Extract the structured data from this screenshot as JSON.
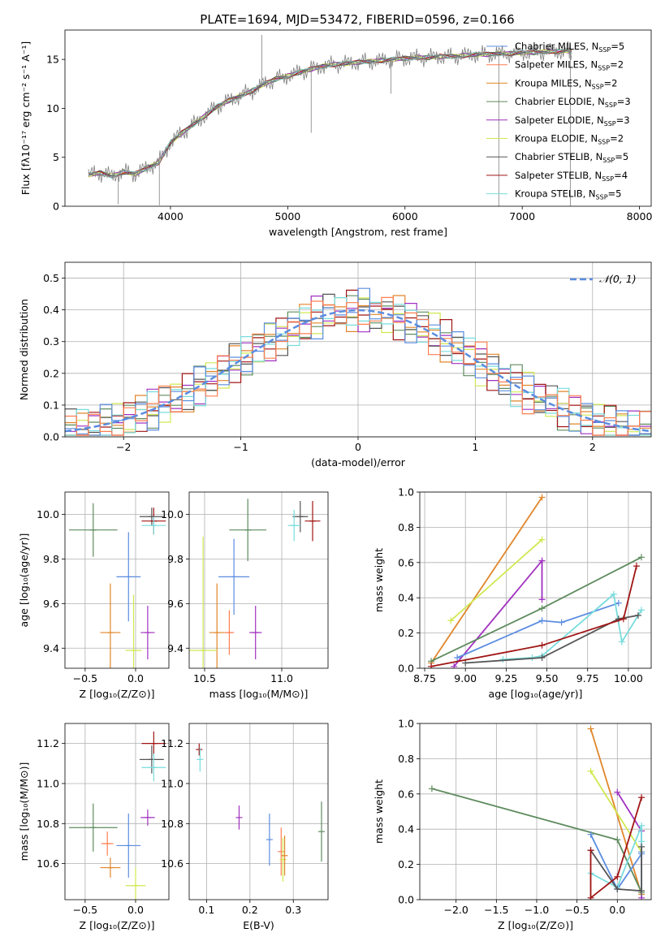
{
  "page": {
    "title": "PLATE=1694, MJD=53472, FIBERID=0596, z=0.166"
  },
  "chart_data": [
    {
      "id": "spectrum",
      "type": "line",
      "xlabel": "wavelength [Angstrom, rest frame]",
      "ylabel": "Flux [fλ10⁻¹⁷ erg cm⁻² s⁻¹ A⁻¹]",
      "xlim": [
        3100,
        8100
      ],
      "ylim": [
        0,
        18
      ],
      "xticks": [
        4000,
        5000,
        6000,
        7000,
        8000
      ],
      "yticks": [
        0,
        5,
        10,
        15
      ],
      "data_color": "#808080",
      "data_x": [
        3300,
        3400,
        3500,
        3600,
        3700,
        3800,
        3900,
        4000,
        4100,
        4200,
        4300,
        4400,
        4500,
        4600,
        4700,
        4800,
        4900,
        5000,
        5100,
        5200,
        5300,
        5400,
        5500,
        5600,
        5700,
        5800,
        5900,
        6000,
        6100,
        6200,
        6300,
        6400,
        6500,
        6600,
        6700,
        6800,
        6900,
        7000,
        7100,
        7200,
        7300,
        7400,
        7420
      ],
      "data_y": [
        3.2,
        3.4,
        3.1,
        3.5,
        3.3,
        3.9,
        4.5,
        6.5,
        7.5,
        8.4,
        9.3,
        10.2,
        10.8,
        11.3,
        11.8,
        12.5,
        13.0,
        13.3,
        13.7,
        14.0,
        14.3,
        14.5,
        14.6,
        14.7,
        14.8,
        14.9,
        15.0,
        15.1,
        15.2,
        15.2,
        15.3,
        15.3,
        15.4,
        15.5,
        15.5,
        15.6,
        15.6,
        15.7,
        15.7,
        15.8,
        15.8,
        15.9,
        15.8
      ],
      "spikes": [
        [
          3555,
          0.2
        ],
        [
          3905,
          0.1
        ],
        [
          4780,
          17.5
        ],
        [
          5200,
          7.5
        ],
        [
          5880,
          11.5
        ],
        [
          6800,
          0.0
        ],
        [
          7410,
          0.0
        ]
      ],
      "legend": [
        {
          "label": "Chabrier MILES, N",
          "sub": "SSP",
          "suffix": "=5",
          "color": "#5b8de0"
        },
        {
          "label": "Salpeter MILES, N",
          "sub": "SSP",
          "suffix": "=2",
          "color": "#ff7f50"
        },
        {
          "label": "Kroupa MILES, N",
          "sub": "SSP",
          "suffix": "=2",
          "color": "#e0862a"
        },
        {
          "label": "Chabrier ELODIE, N",
          "sub": "SSP",
          "suffix": "=3",
          "color": "#5e8b5e"
        },
        {
          "label": "Salpeter ELODIE, N",
          "sub": "SSP",
          "suffix": "=3",
          "color": "#a030c0"
        },
        {
          "label": "Kroupa ELODIE, N",
          "sub": "SSP",
          "suffix": "=2",
          "color": "#d0e850"
        },
        {
          "label": "Chabrier STELIB, N",
          "sub": "SSP",
          "suffix": "=5",
          "color": "#555555"
        },
        {
          "label": "Salpeter STELIB, N",
          "sub": "SSP",
          "suffix": "=4",
          "color": "#a01414"
        },
        {
          "label": "Kroupa STELIB, N",
          "sub": "SSP",
          "suffix": "=5",
          "color": "#78dcdc"
        }
      ]
    },
    {
      "id": "residuals",
      "type": "bar",
      "xlabel": "(data-model)/error",
      "ylabel": "Normed distribution",
      "xlim": [
        -2.5,
        2.5
      ],
      "ylim": [
        0,
        0.55
      ],
      "xticks": [
        -2,
        -1,
        0,
        1,
        2
      ],
      "xtick_labels": [
        "−2",
        "−1",
        "0",
        "1",
        "2"
      ],
      "yticks": [
        0.0,
        0.1,
        0.2,
        0.3,
        0.4,
        0.5
      ],
      "grid": true,
      "bin_edges_start": -2.5,
      "bin_width": 0.1,
      "gauss_label": "𝒩(0, 1)",
      "gauss_color": "#5b8de0",
      "hist_colors": [
        "#e0862a",
        "#5e8b5e",
        "#a030c0",
        "#d0e850",
        "#555555",
        "#a01414",
        "#78dcdc",
        "#5b8de0",
        "#ff7f50"
      ]
    },
    {
      "id": "age-vs-Z",
      "type": "scatter",
      "xlabel": "Z [log₁₀(Z/Z⊙)]",
      "ylabel": "age  [log₁₀(age/yr)]",
      "xlim": [
        -0.7,
        0.33
      ],
      "ylim": [
        9.31,
        10.1
      ],
      "xticks": [
        -0.5,
        0.0
      ],
      "xtick_labels": [
        "−0.5",
        "0.0"
      ],
      "yticks": [
        9.4,
        9.6,
        9.8,
        10.0
      ],
      "grid": true,
      "points": [
        {
          "x": -0.42,
          "y": 9.93,
          "xe": 0.24,
          "ye": 0.12,
          "color": "#5e8b5e"
        },
        {
          "x": -0.25,
          "y": 9.47,
          "xe": 0.1,
          "ye": 0.22,
          "color": "#e0862a"
        },
        {
          "x": -0.07,
          "y": 9.72,
          "xe": 0.12,
          "ye": 0.2,
          "color": "#5b8de0"
        },
        {
          "x": -0.02,
          "y": 9.39,
          "xe": 0.08,
          "ye": 0.25,
          "color": "#d0e850"
        },
        {
          "x": 0.12,
          "y": 9.47,
          "xe": 0.07,
          "ye": 0.12,
          "color": "#a030c0"
        },
        {
          "x": 0.16,
          "y": 9.99,
          "xe": 0.12,
          "ye": 0.04,
          "color": "#555555"
        },
        {
          "x": 0.18,
          "y": 9.97,
          "xe": 0.12,
          "ye": 0.06,
          "color": "#a01414"
        },
        {
          "x": 0.18,
          "y": 9.95,
          "xe": 0.12,
          "ye": 0.04,
          "color": "#78dcdc"
        }
      ]
    },
    {
      "id": "age-vs-mass",
      "type": "scatter",
      "xlabel": "mass [log₁₀(M/M⊙)]",
      "ylabel": "",
      "xlim": [
        10.4,
        11.3
      ],
      "ylim": [
        9.31,
        10.1
      ],
      "xticks": [
        10.5,
        11.0
      ],
      "xtick_labels": [
        "10.5",
        "11.0"
      ],
      "yticks": [
        9.4,
        9.6,
        9.8,
        10.0
      ],
      "grid": true,
      "points": [
        {
          "x": 10.78,
          "y": 9.93,
          "xe": 0.12,
          "ye": 0.14,
          "color": "#5e8b5e"
        },
        {
          "x": 10.58,
          "y": 9.47,
          "xe": 0.05,
          "ye": 0.22,
          "color": "#e0862a"
        },
        {
          "x": 10.69,
          "y": 9.72,
          "xe": 0.1,
          "ye": 0.17,
          "color": "#5b8de0"
        },
        {
          "x": 10.49,
          "y": 9.39,
          "xe": 0.09,
          "ye": 0.51,
          "color": "#d0e850"
        },
        {
          "x": 10.83,
          "y": 9.47,
          "xe": 0.04,
          "ye": 0.12,
          "color": "#a030c0"
        },
        {
          "x": 10.66,
          "y": 9.47,
          "xe": 0.03,
          "ye": 0.1,
          "color": "#ff7f50"
        },
        {
          "x": 11.12,
          "y": 9.99,
          "xe": 0.05,
          "ye": 0.07,
          "color": "#555555"
        },
        {
          "x": 11.2,
          "y": 9.97,
          "xe": 0.05,
          "ye": 0.09,
          "color": "#a01414"
        },
        {
          "x": 11.08,
          "y": 9.95,
          "xe": 0.04,
          "ye": 0.07,
          "color": "#78dcdc"
        }
      ]
    },
    {
      "id": "massweight-vs-age",
      "type": "line",
      "xlabel": "age  [log₁₀(age/yr)]",
      "ylabel": "mass weight",
      "xlim": [
        8.72,
        10.14
      ],
      "ylim": [
        0,
        1.0
      ],
      "xticks": [
        8.75,
        9.0,
        9.25,
        9.5,
        9.75,
        10.0
      ],
      "xtick_labels": [
        "8.75",
        "9.00",
        "9.25",
        "9.50",
        "9.75",
        "10.00"
      ],
      "yticks": [
        0.0,
        0.2,
        0.4,
        0.6,
        0.8,
        1.0
      ],
      "grid": true,
      "series": [
        {
          "color": "#e0862a",
          "x": [
            8.79,
            9.47
          ],
          "y": [
            0.03,
            0.97
          ]
        },
        {
          "color": "#d0e850",
          "x": [
            8.91,
            9.47
          ],
          "y": [
            0.27,
            0.73
          ]
        },
        {
          "color": "#a030c0",
          "x": [
            8.93,
            9.47,
            9.47
          ],
          "y": [
            0.01,
            0.61,
            0.39
          ]
        },
        {
          "color": "#5e8b5e",
          "x": [
            8.79,
            9.47,
            10.08
          ],
          "y": [
            0.04,
            0.34,
            0.63
          ]
        },
        {
          "color": "#5b8de0",
          "x": [
            8.95,
            9.47,
            9.59,
            9.94
          ],
          "y": [
            0.06,
            0.27,
            0.26,
            0.37
          ]
        },
        {
          "color": "#78dcdc",
          "x": [
            9.23,
            9.41,
            9.47,
            9.91,
            9.96,
            10.08
          ],
          "y": [
            0.05,
            0.06,
            0.07,
            0.42,
            0.15,
            0.33
          ]
        },
        {
          "color": "#555555",
          "x": [
            9.0,
            9.47,
            9.94,
            10.06
          ],
          "y": [
            0.03,
            0.06,
            0.28,
            0.3
          ]
        },
        {
          "color": "#a01414",
          "x": [
            8.79,
            9.47,
            9.97,
            10.05
          ],
          "y": [
            0.01,
            0.13,
            0.28,
            0.58
          ]
        }
      ]
    },
    {
      "id": "mass-vs-Z",
      "type": "scatter",
      "xlabel": "Z [log₁₀(Z/Z⊙)]",
      "ylabel": "mass [log₁₀(M/M⊙)]",
      "xlim": [
        -0.7,
        0.33
      ],
      "ylim": [
        10.42,
        11.3
      ],
      "xticks": [
        -0.5,
        0.0
      ],
      "xtick_labels": [
        "−0.5",
        "0.0"
      ],
      "yticks": [
        10.6,
        10.8,
        11.0,
        11.2
      ],
      "grid": true,
      "points": [
        {
          "x": -0.42,
          "y": 10.78,
          "xe": 0.24,
          "ye": 0.12,
          "color": "#5e8b5e"
        },
        {
          "x": -0.25,
          "y": 10.58,
          "xe": 0.1,
          "ye": 0.05,
          "color": "#e0862a"
        },
        {
          "x": -0.28,
          "y": 10.7,
          "xe": 0.06,
          "ye": 0.06,
          "color": "#ff7f50"
        },
        {
          "x": -0.07,
          "y": 10.69,
          "xe": 0.12,
          "ye": 0.16,
          "color": "#5b8de0"
        },
        {
          "x": 0.0,
          "y": 10.49,
          "xe": 0.1,
          "ye": 0.09,
          "color": "#d0e850"
        },
        {
          "x": 0.12,
          "y": 10.83,
          "xe": 0.07,
          "ye": 0.04,
          "color": "#a030c0"
        },
        {
          "x": 0.16,
          "y": 11.12,
          "xe": 0.12,
          "ye": 0.07,
          "color": "#555555"
        },
        {
          "x": 0.18,
          "y": 11.2,
          "xe": 0.12,
          "ye": 0.06,
          "color": "#a01414"
        },
        {
          "x": 0.18,
          "y": 11.08,
          "xe": 0.12,
          "ye": 0.07,
          "color": "#78dcdc"
        }
      ]
    },
    {
      "id": "mass-vs-EBV",
      "type": "scatter",
      "xlabel": "E(B-V)",
      "ylabel": "",
      "xlim": [
        0.06,
        0.38
      ],
      "ylim": [
        10.42,
        11.3
      ],
      "xticks": [
        0.1,
        0.2,
        0.3
      ],
      "xtick_labels": [
        "0.1",
        "0.2",
        "0.3"
      ],
      "yticks": [
        10.6,
        10.8,
        11.0,
        11.2
      ],
      "grid": true,
      "points": [
        {
          "x": 0.083,
          "y": 11.17,
          "xe": 0,
          "ye": 0.03,
          "color": "#a01414"
        },
        {
          "x": 0.085,
          "y": 11.12,
          "xe": 0,
          "ye": 0.06,
          "color": "#78dcdc"
        },
        {
          "x": 0.175,
          "y": 10.83,
          "xe": 0,
          "ye": 0.06,
          "color": "#a030c0"
        },
        {
          "x": 0.245,
          "y": 10.72,
          "xe": 0,
          "ye": 0.13,
          "color": "#5b8de0"
        },
        {
          "x": 0.272,
          "y": 10.66,
          "xe": 0,
          "ye": 0.12,
          "color": "#ff7f50"
        },
        {
          "x": 0.276,
          "y": 10.62,
          "xe": 0,
          "ye": 0.11,
          "color": "#d0e850"
        },
        {
          "x": 0.28,
          "y": 10.64,
          "xe": 0,
          "ye": 0.1,
          "color": "#e0862a"
        },
        {
          "x": 0.365,
          "y": 10.76,
          "xe": 0,
          "ye": 0.15,
          "color": "#5e8b5e"
        }
      ]
    },
    {
      "id": "massweight-vs-Z",
      "type": "line",
      "xlabel": "Z [log₁₀(Z/Z⊙)]",
      "ylabel": "mass weight",
      "xlim": [
        -2.45,
        0.42
      ],
      "ylim": [
        0,
        1.0
      ],
      "xticks": [
        -2.0,
        -1.5,
        -1.0,
        -0.5,
        0.0
      ],
      "xtick_labels": [
        "−2.0",
        "−1.5",
        "−1.0",
        "−0.5",
        "0.0"
      ],
      "yticks": [
        0.0,
        0.2,
        0.4,
        0.6,
        0.8,
        1.0
      ],
      "grid": true,
      "series": [
        {
          "color": "#e0862a",
          "x": [
            -0.33,
            0.3
          ],
          "y": [
            0.97,
            0.03
          ]
        },
        {
          "color": "#d0e850",
          "x": [
            -0.33,
            0.3
          ],
          "y": [
            0.73,
            0.27
          ]
        },
        {
          "color": "#a030c0",
          "x": [
            0.0,
            0.3,
            0.3
          ],
          "y": [
            0.61,
            0.39,
            0.01
          ]
        },
        {
          "color": "#5e8b5e",
          "x": [
            -2.3,
            0.0,
            0.3
          ],
          "y": [
            0.63,
            0.34,
            0.04
          ]
        },
        {
          "color": "#5b8de0",
          "x": [
            -0.33,
            0.0,
            0.3,
            0.3
          ],
          "y": [
            0.37,
            0.06,
            0.26,
            0.27
          ]
        },
        {
          "color": "#78dcdc",
          "x": [
            -0.33,
            0.0,
            0.3,
            0.3,
            0.3
          ],
          "y": [
            0.15,
            0.07,
            0.42,
            0.33,
            0.05
          ]
        },
        {
          "color": "#555555",
          "x": [
            -0.33,
            0.0,
            0.3,
            0.3
          ],
          "y": [
            0.28,
            0.06,
            0.05,
            0.3
          ]
        },
        {
          "color": "#a01414",
          "x": [
            -0.33,
            -0.33,
            0.0,
            0.3
          ],
          "y": [
            0.28,
            0.01,
            0.13,
            0.58
          ]
        }
      ]
    }
  ]
}
